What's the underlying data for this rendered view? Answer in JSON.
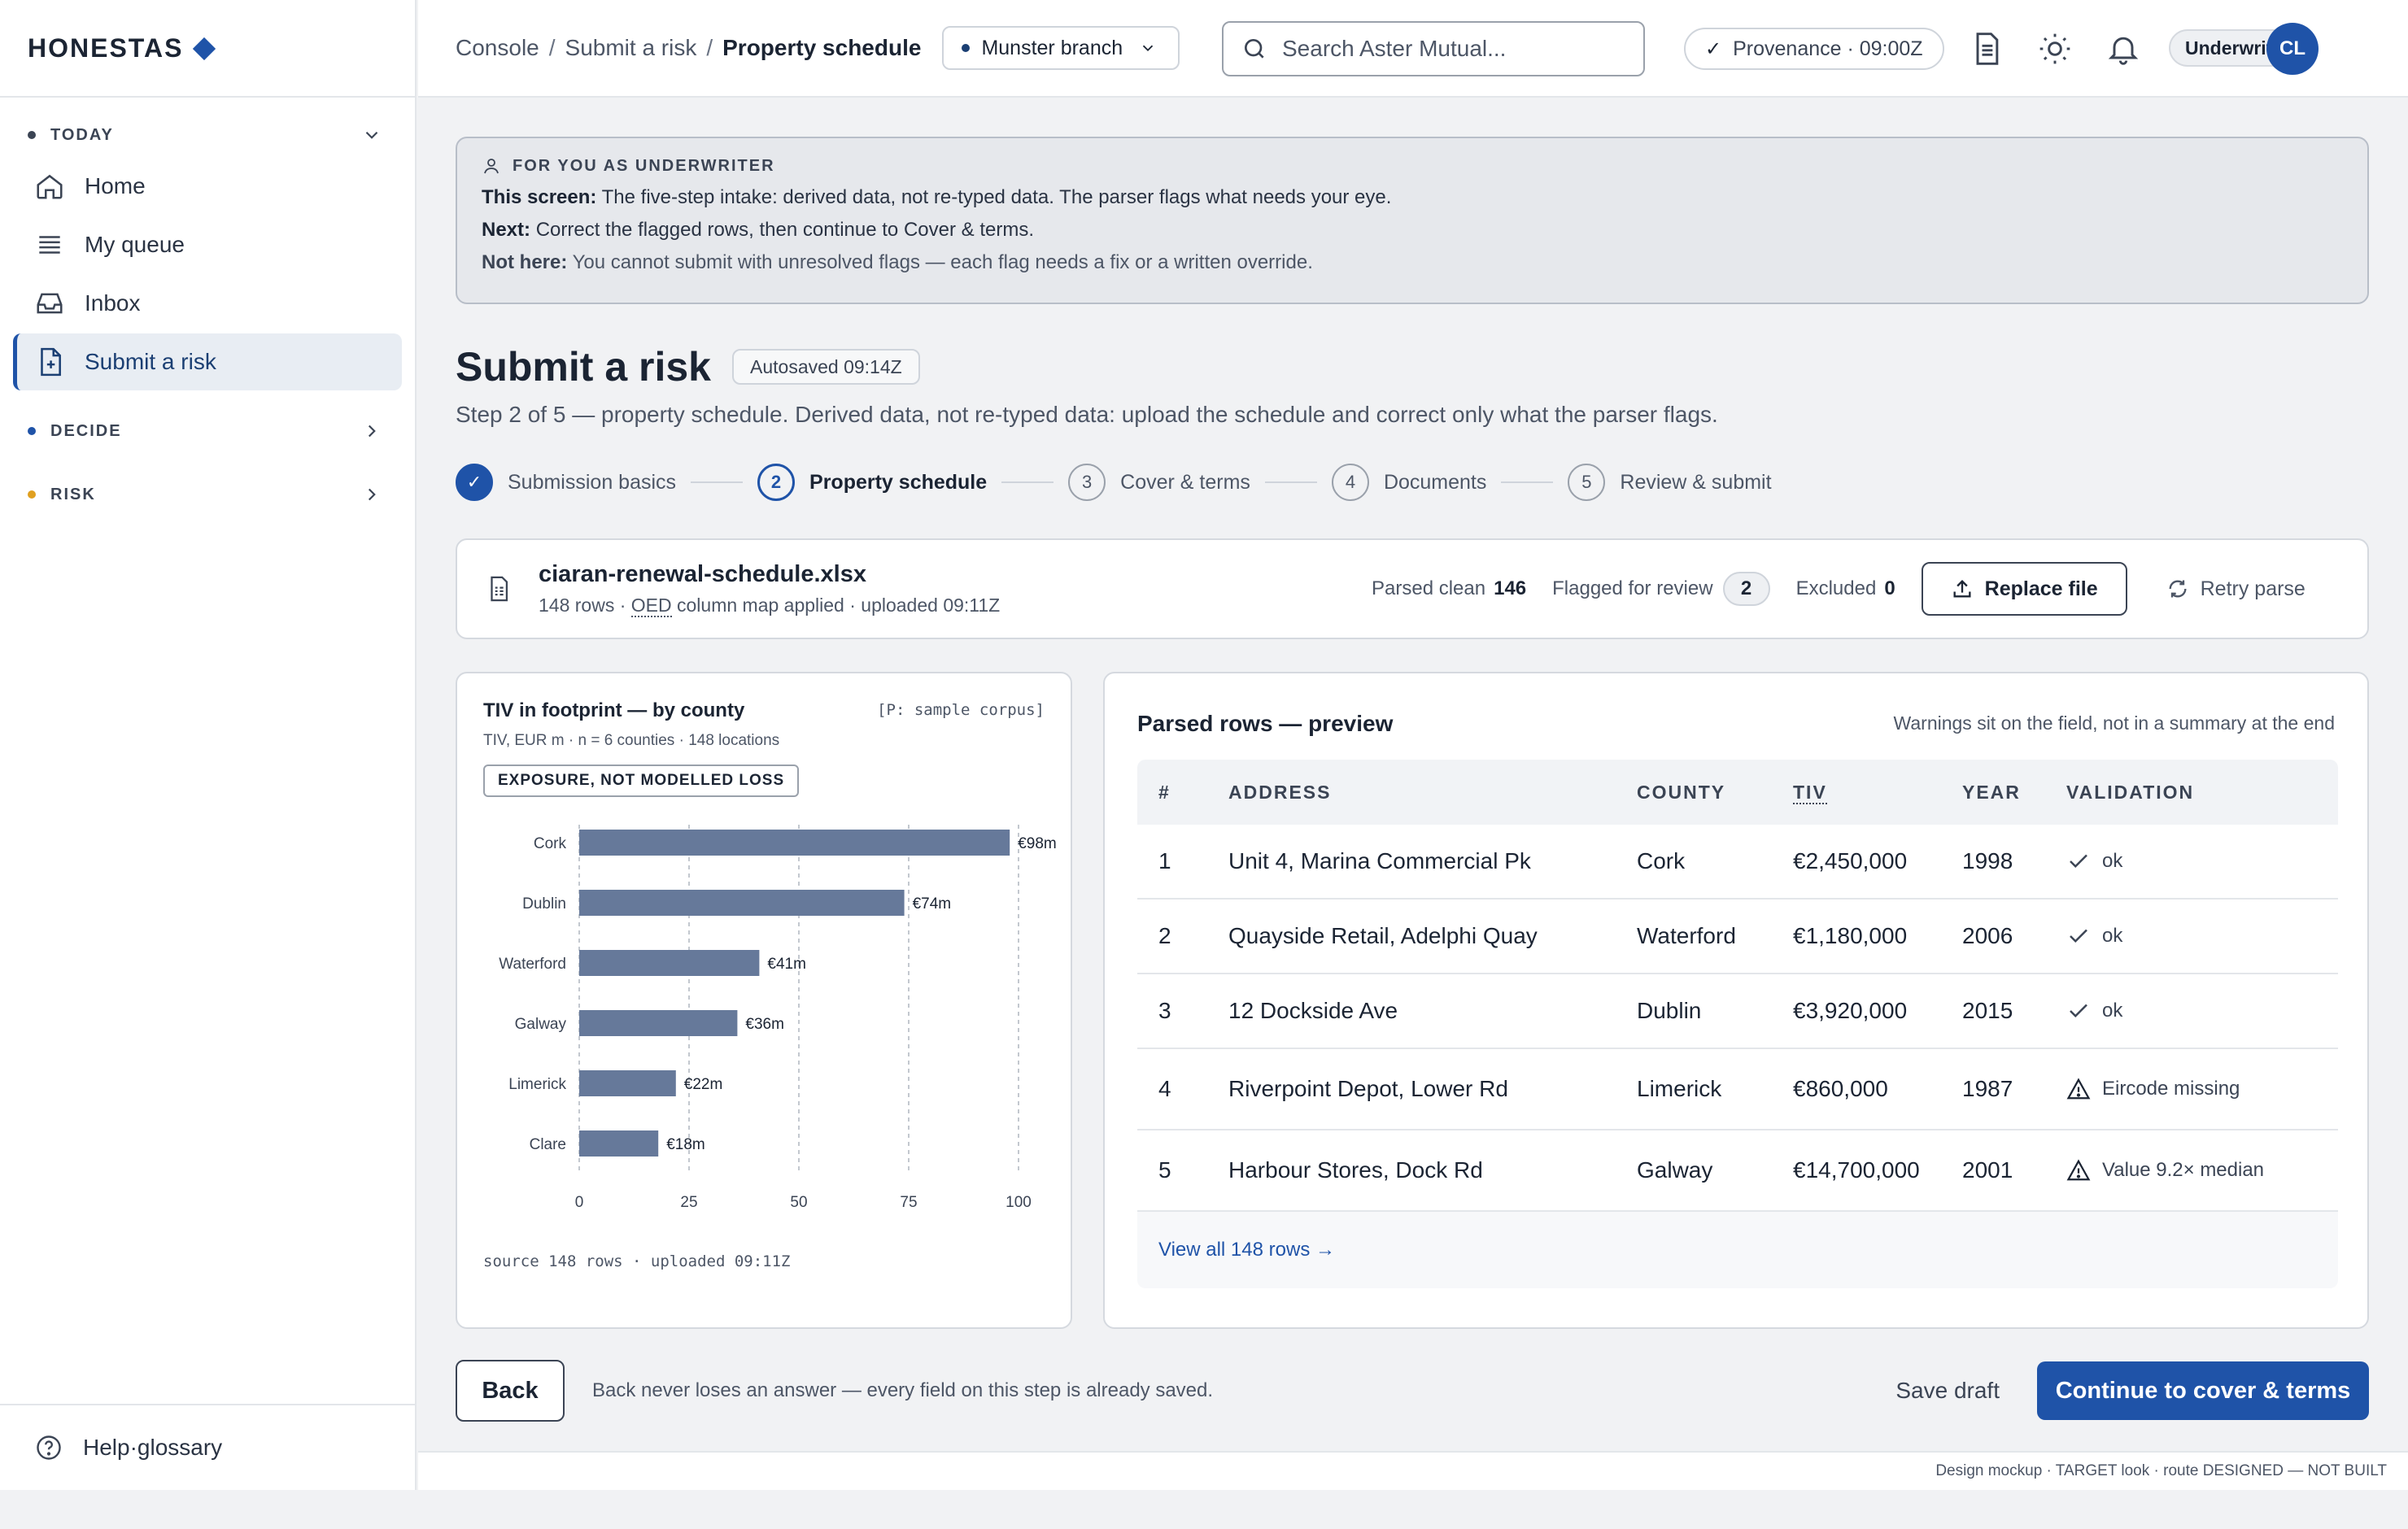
{
  "app": {
    "logo_text": "HONESTAS"
  },
  "sidebar": {
    "sections": [
      {
        "label": "TODAY",
        "color": "#3b4454"
      },
      {
        "label": "DECIDE",
        "color": "#1f53a8"
      },
      {
        "label": "RISK",
        "color": "#e0a020"
      }
    ],
    "items": [
      {
        "label": "Home",
        "icon": "home-icon"
      },
      {
        "label": "My queue",
        "icon": "list-icon"
      },
      {
        "label": "Inbox",
        "icon": "inbox-icon"
      },
      {
        "label": "Submit a risk",
        "icon": "file-plus-icon",
        "active": true
      }
    ],
    "help_label": "Help·glossary"
  },
  "topbar": {
    "breadcrumb": [
      "Console",
      "Submit a risk",
      "Property schedule"
    ],
    "branch_label": "Munster branch",
    "search_placeholder": "Search Aster Mutual...",
    "provenance_label": "Provenance · 09:00Z",
    "role_label": "Underwriter",
    "avatar_initials": "CL"
  },
  "callout": {
    "heading": "FOR YOU AS UNDERWRITER",
    "lines": [
      {
        "key": "This screen:",
        "text": "The five-step intake: derived data, not re-typed data. The parser flags what needs your eye."
      },
      {
        "key": "Next:",
        "text": "Correct the flagged rows, then continue to Cover & terms."
      },
      {
        "key": "Not here:",
        "text": "You cannot submit with unresolved flags — each flag needs a fix or a written override."
      }
    ]
  },
  "page": {
    "title": "Submit a risk",
    "autosave": "Autosaved 09:14Z",
    "subtitle": "Step 2 of 5 — property schedule. Derived data, not re-typed data: upload the schedule and correct only what the parser flags."
  },
  "steps": [
    {
      "num": "1",
      "label": "Submission basics",
      "state": "done"
    },
    {
      "num": "2",
      "label": "Property schedule",
      "state": "current"
    },
    {
      "num": "3",
      "label": "Cover & terms",
      "state": "todo"
    },
    {
      "num": "4",
      "label": "Documents",
      "state": "todo"
    },
    {
      "num": "5",
      "label": "Review & submit",
      "state": "todo"
    }
  ],
  "file": {
    "name": "ciaran-renewal-schedule.xlsx",
    "meta_rows": "148 rows · ",
    "meta_abbr": "OED",
    "meta_rest": " column map applied · uploaded 09:11Z",
    "parsed_label": "Parsed clean",
    "parsed_value": "146",
    "flagged_label": "Flagged for review",
    "flagged_value": "2",
    "excluded_label": "Excluded",
    "excluded_value": "0",
    "replace_label": "Replace file",
    "retry_label": "Retry parse"
  },
  "chart_card": {
    "tag": "[P: sample corpus]",
    "badge": "EXPOSURE, NOT MODELLED LOSS",
    "source": "source 148 rows · uploaded 09:11Z"
  },
  "chart_data": {
    "type": "bar",
    "orientation": "horizontal",
    "title": "TIV in footprint — by county",
    "subtitle": "TIV, EUR m · n = 6 counties · 148 locations",
    "categories": [
      "Cork",
      "Dublin",
      "Waterford",
      "Galway",
      "Limerick",
      "Clare"
    ],
    "values": [
      98,
      74,
      41,
      36,
      22,
      18
    ],
    "value_labels": [
      "€98m",
      "€74m",
      "€41m",
      "€36m",
      "€22m",
      "€18m"
    ],
    "xlim": [
      0,
      100
    ],
    "xticks": [
      "0",
      "25",
      "50",
      "75",
      "100"
    ],
    "bar_color": "#66799a",
    "grid": true
  },
  "table": {
    "title": "Parsed rows — preview",
    "note": "Warnings sit on the field, not in a summary at the end",
    "columns": [
      "#",
      "ADDRESS",
      "COUNTY",
      "TIV",
      "YEAR",
      "VALIDATION"
    ],
    "rows": [
      {
        "num": "1",
        "address": "Unit 4, Marina Commercial Pk",
        "county": "Cork",
        "tiv": "€2,450,000",
        "year": "1998",
        "validation": "ok",
        "status": "ok"
      },
      {
        "num": "2",
        "address": "Quayside Retail, Adelphi Quay",
        "county": "Waterford",
        "tiv": "€1,180,000",
        "year": "2006",
        "validation": "ok",
        "status": "ok"
      },
      {
        "num": "3",
        "address": "12 Dockside Ave",
        "county": "Dublin",
        "tiv": "€3,920,000",
        "year": "2015",
        "validation": "ok",
        "status": "ok"
      },
      {
        "num": "4",
        "address": "Riverpoint Depot, Lower Rd",
        "county": "Limerick",
        "tiv": "€860,000",
        "year": "1987",
        "validation": "Eircode missing",
        "status": "warn"
      },
      {
        "num": "5",
        "address": "Harbour Stores, Dock Rd",
        "county": "Galway",
        "tiv": "€14,700,000",
        "year": "2001",
        "validation": "Value 9.2× median",
        "status": "warn"
      }
    ],
    "view_all": "View all 148 rows →"
  },
  "actions": {
    "back_label": "Back",
    "back_note": "Back never loses an answer — every field on this step is already saved.",
    "save_draft": "Save draft",
    "continue_label": "Continue to cover & terms"
  },
  "footer": {
    "text": "Design mockup · TARGET look · route DESIGNED — NOT BUILT"
  }
}
